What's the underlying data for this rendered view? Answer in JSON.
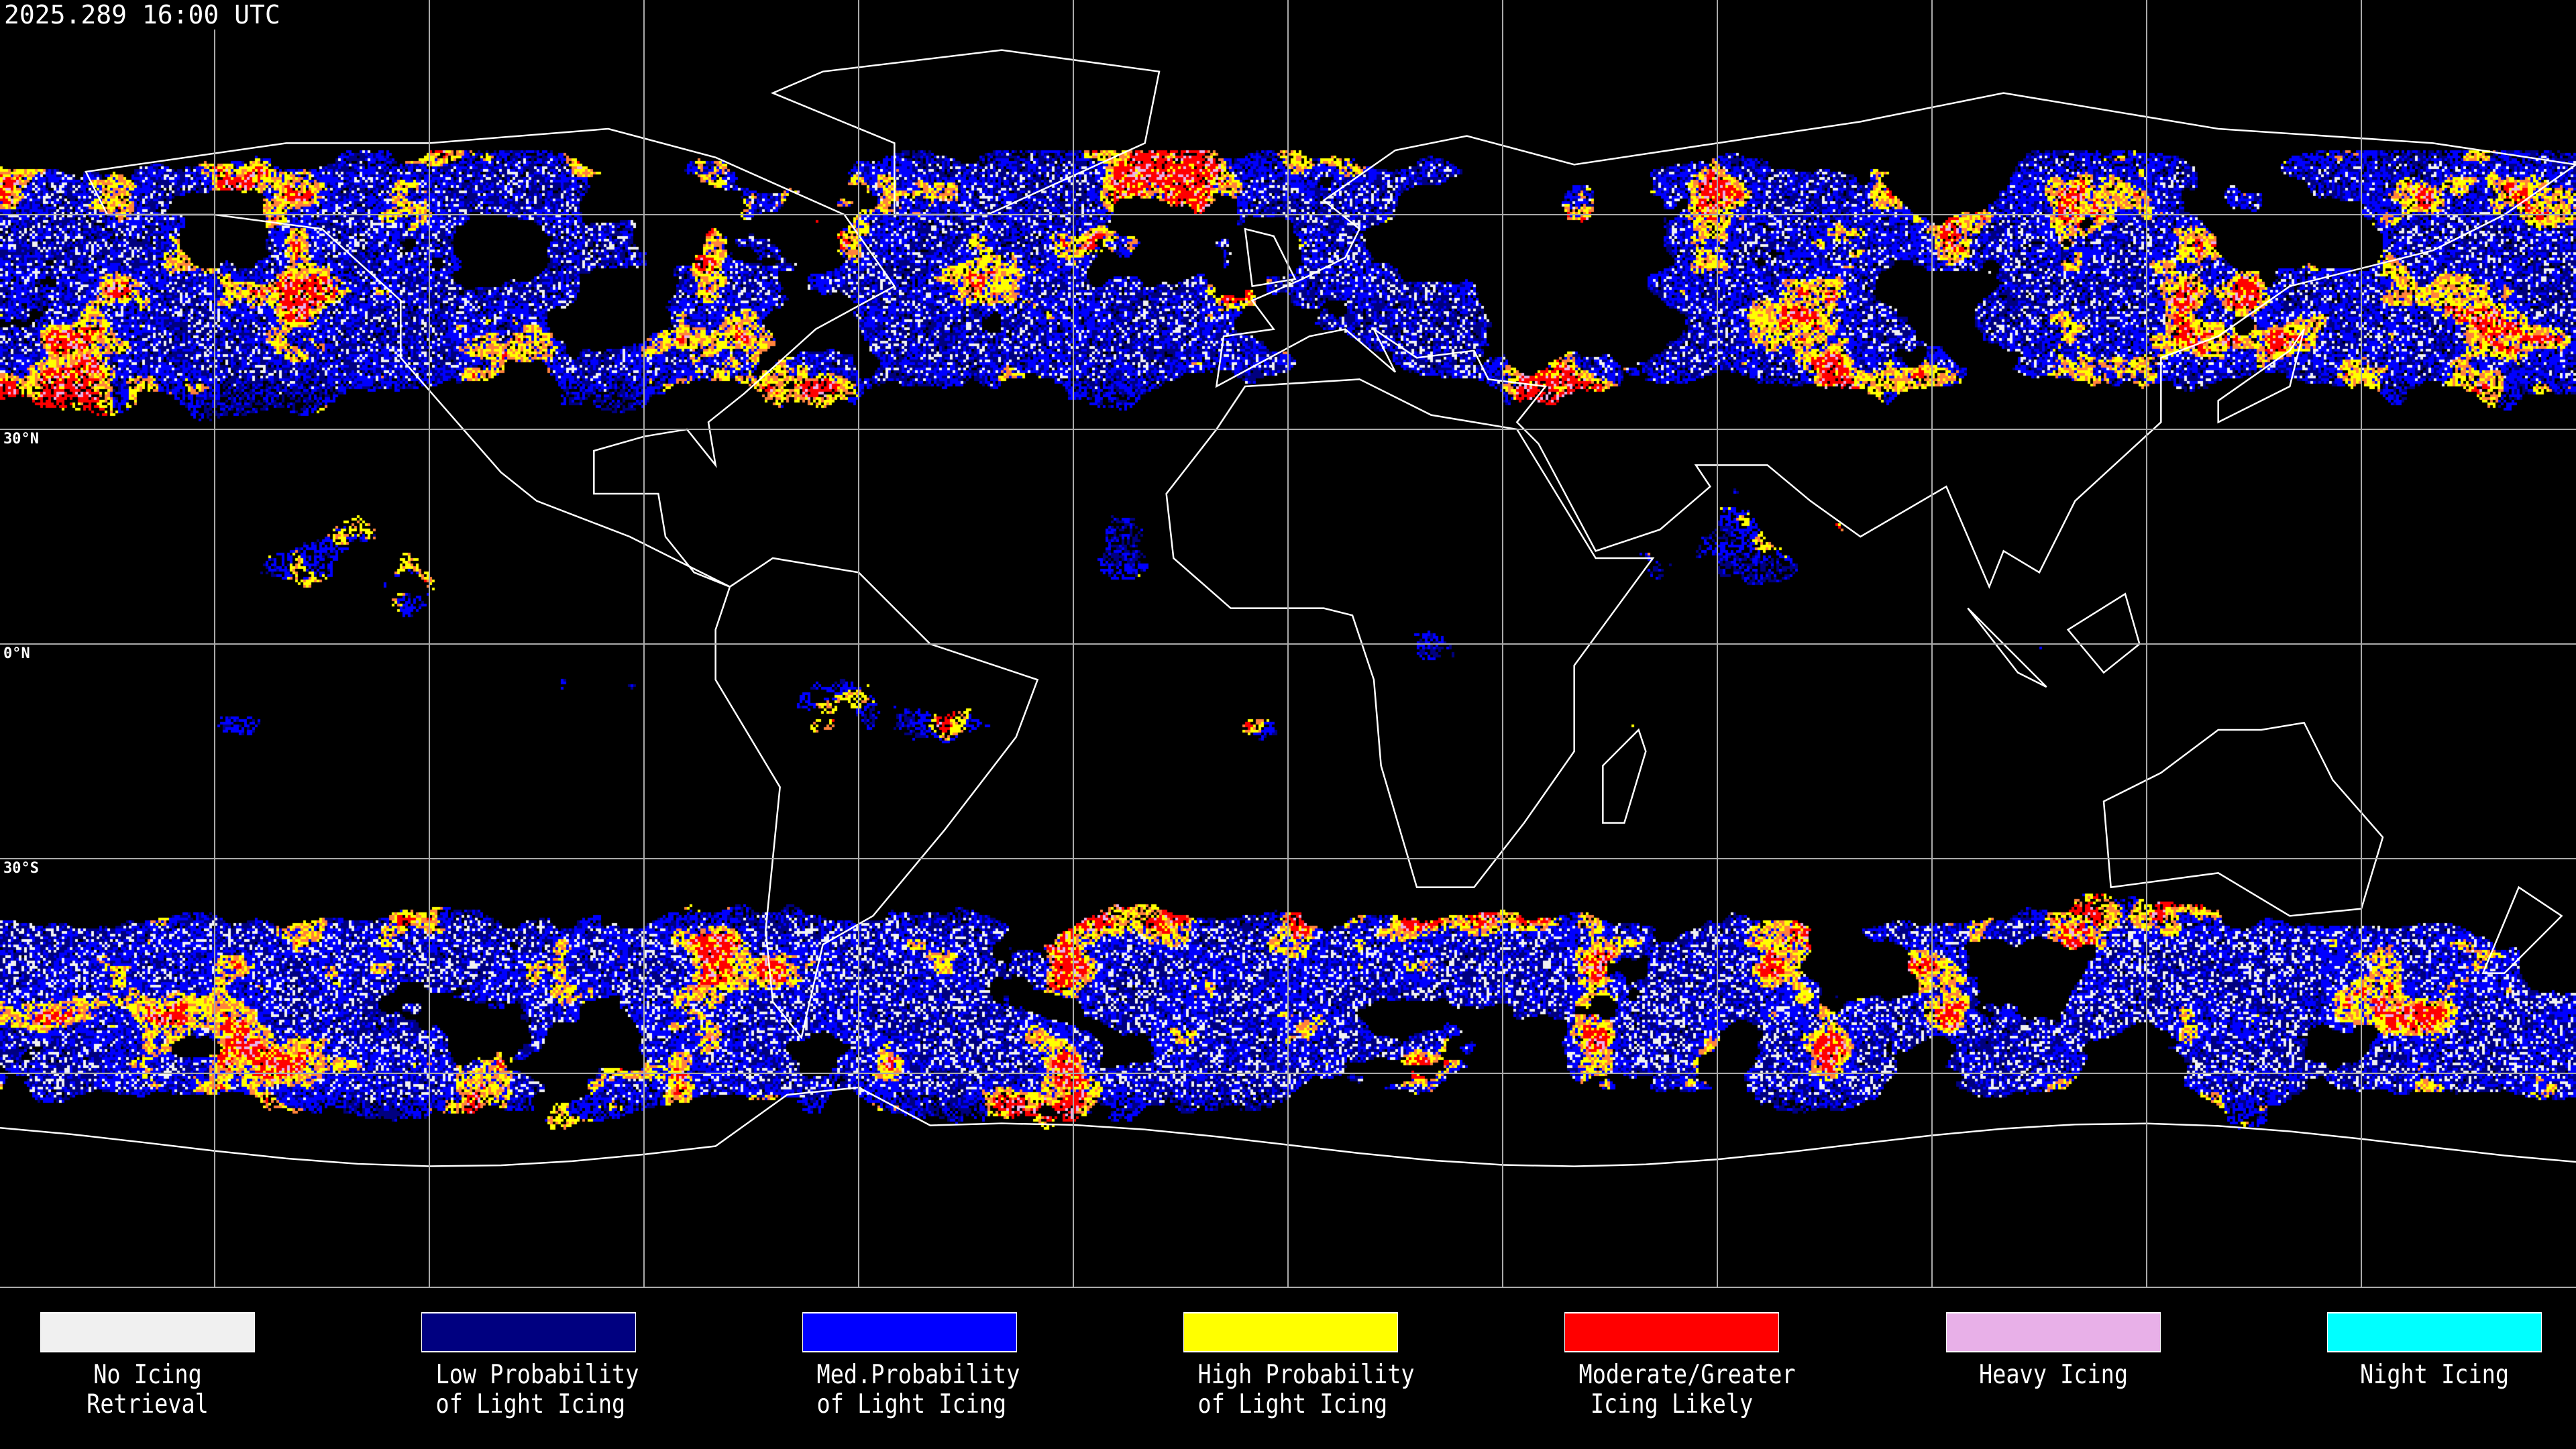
{
  "header": {
    "timestamp": "2025.289 16:00 UTC"
  },
  "map": {
    "projection": "equirectangular",
    "grid_spacing_degrees": 30,
    "lat_labels": [
      "30°N",
      "0°N",
      "30°S"
    ],
    "background_color": "#000000",
    "gridline_color": "#aaaaaa",
    "coastline_color": "#ffffff"
  },
  "legend": {
    "items": [
      {
        "line1": "No Icing",
        "line2": "Retrieval",
        "color": "#f0f0f0"
      },
      {
        "line1": "Low Probability",
        "line2": "of Light Icing",
        "color": "#000080"
      },
      {
        "line1": "Med.Probability",
        "line2": "of Light Icing",
        "color": "#0000ff"
      },
      {
        "line1": "High Probability",
        "line2": "of Light Icing",
        "color": "#ffff00"
      },
      {
        "line1": "Moderate/Greater",
        "line2": "Icing Likely",
        "color": "#ff0000"
      },
      {
        "line1": "Heavy Icing",
        "line2": "",
        "color": "#e8b0e8"
      },
      {
        "line1": "Night Icing",
        "line2": "",
        "color": "#00ffff"
      }
    ]
  }
}
